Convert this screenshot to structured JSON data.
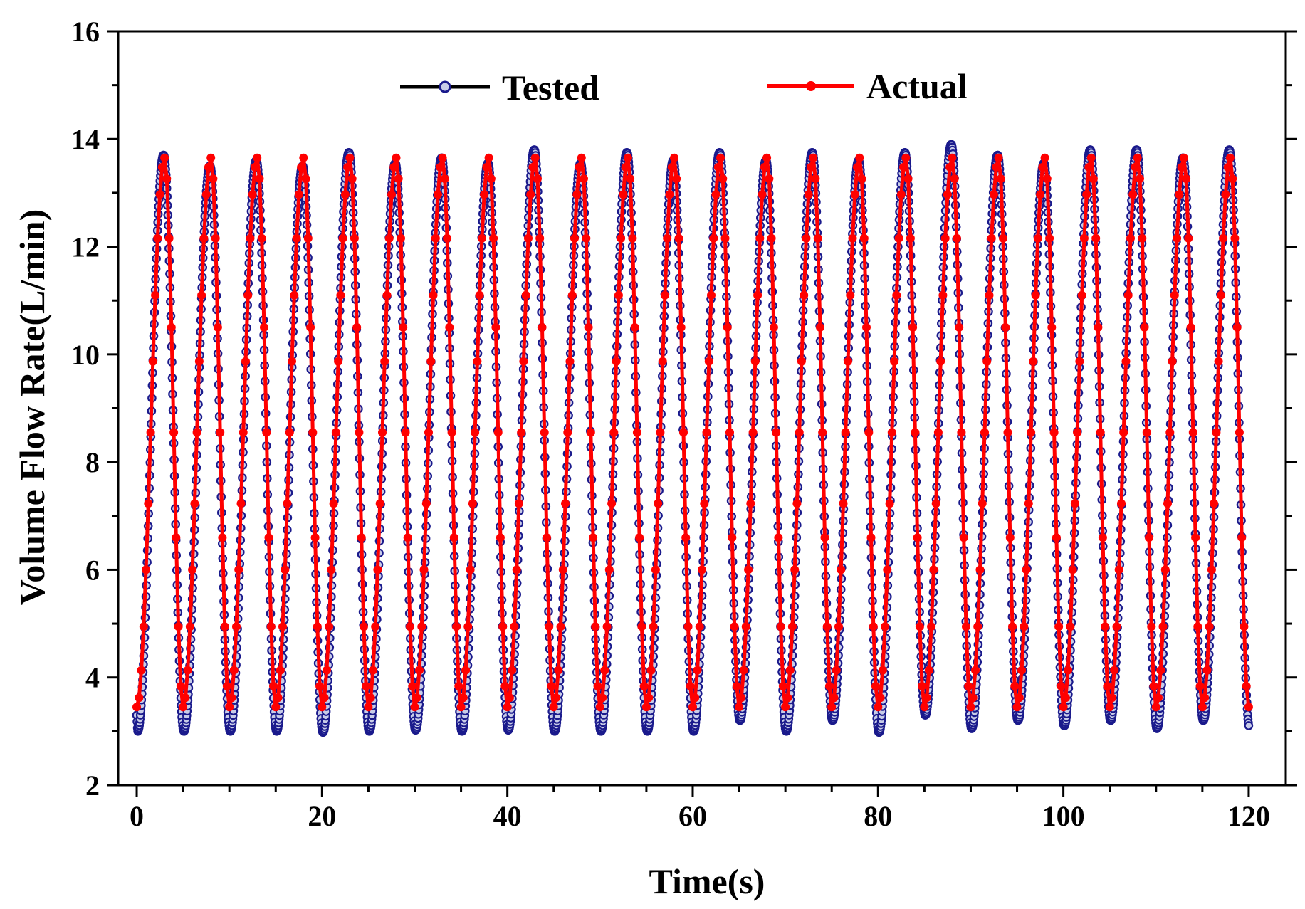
{
  "chart_data": {
    "type": "line",
    "title": "",
    "xlabel": "Time(s)",
    "ylabel": "Volume Flow Rate(L/min)",
    "xlim": [
      -2,
      124
    ],
    "ylim": [
      2,
      16
    ],
    "x_ticks": [
      0,
      20,
      40,
      60,
      80,
      100,
      120
    ],
    "x_tick_labels": [
      "0",
      "20",
      "40",
      "60",
      "80",
      "100",
      "120"
    ],
    "x_minor_step": 5,
    "y_ticks": [
      2,
      4,
      6,
      8,
      10,
      12,
      14,
      16
    ],
    "y_tick_labels": [
      "2",
      "4",
      "6",
      "8",
      "10",
      "12",
      "14",
      "16"
    ],
    "y_minor_step": 1,
    "grid": false,
    "legend_position": "top-center",
    "legend": [
      "Tested",
      "Actual"
    ],
    "series": [
      {
        "name": "Tested",
        "color": "#1a1a8c",
        "marker_fill": "#c8cce8",
        "line_color": "#000000",
        "period_s": 5,
        "sample_step_s": 0.04,
        "x_range": [
          0,
          120
        ],
        "rise_s": 2.8,
        "peak_times": [
          2.9,
          7.9,
          12.9,
          17.9,
          22.9,
          27.9,
          32.9,
          37.9,
          42.9,
          47.9,
          52.9,
          57.9,
          62.9,
          67.9,
          72.9,
          77.9,
          82.9,
          87.9,
          92.9,
          97.9,
          102.9,
          107.9,
          112.9,
          117.9
        ],
        "peaks": [
          13.7,
          13.5,
          13.6,
          13.5,
          13.75,
          13.55,
          13.65,
          13.55,
          13.8,
          13.55,
          13.75,
          13.6,
          13.75,
          13.6,
          13.75,
          13.6,
          13.75,
          13.9,
          13.7,
          13.55,
          13.8,
          13.8,
          13.65,
          13.8
        ],
        "troughs": [
          3.0,
          3.0,
          3.0,
          2.98,
          3.0,
          3.02,
          3.0,
          3.02,
          3.0,
          3.0,
          3.0,
          3.0,
          3.2,
          3.0,
          3.2,
          2.98,
          3.3,
          3.05,
          3.2,
          3.1,
          3.2,
          3.05,
          3.2,
          3.05
        ],
        "start_value": 3.3
      },
      {
        "name": "Actual",
        "color": "#ff0000",
        "period_s": 5,
        "sample_step_s": 0.25,
        "x_range": [
          0,
          120
        ],
        "rise_s": 3.0,
        "peak_times": [
          3.0,
          8.0,
          13.0,
          18.0,
          23.0,
          28.0,
          33.0,
          38.0,
          43.0,
          48.0,
          53.0,
          58.0,
          63.0,
          68.0,
          73.0,
          78.0,
          83.0,
          88.0,
          93.0,
          98.0,
          103.0,
          108.0,
          113.0,
          118.0
        ],
        "peak": 13.65,
        "trough": 3.45,
        "start_value": 3.6
      }
    ]
  }
}
